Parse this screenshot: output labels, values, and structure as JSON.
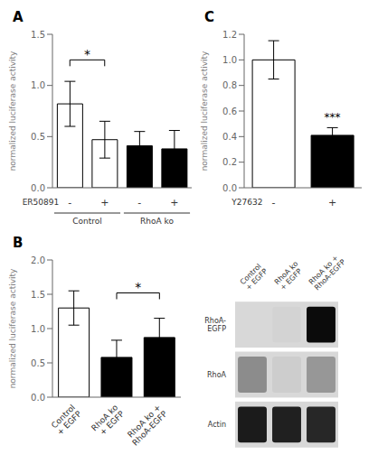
{
  "chart_data": [
    {
      "type": "bar",
      "title": "A",
      "categories": [
        "-",
        "+",
        "-",
        "+"
      ],
      "values": [
        0.82,
        0.47,
        0.41,
        0.38
      ],
      "errors": [
        0.22,
        0.18,
        0.14,
        0.18
      ],
      "colors": [
        "white",
        "white",
        "black",
        "black"
      ],
      "ylabel": "normalized luciferase activity",
      "xlabel": "ER50891",
      "ylim": [
        0,
        1.5
      ],
      "yticks": [
        {
          "value": 0,
          "label": "0.0"
        },
        0.5,
        {
          "value": 1,
          "label": "1.0"
        },
        1.5
      ],
      "groups": [
        {
          "label": "Control",
          "categories": [
            0,
            1
          ]
        },
        {
          "label": "RhoA ko",
          "categories": [
            2,
            3
          ]
        }
      ],
      "annotations": [
        {
          "text": "*",
          "x": [
            0,
            1
          ],
          "y": 1.25
        }
      ]
    },
    {
      "type": "bar",
      "title": "C",
      "categories": [
        "-",
        "+"
      ],
      "values": [
        1.0,
        0.41
      ],
      "errors": [
        0.15,
        0.06
      ],
      "colors": [
        "white",
        "black"
      ],
      "ylabel": "normalized luciferase activity",
      "xlabel": "Y27632",
      "ylim": [
        0,
        1.2
      ],
      "yticks": [
        {
          "value": 0,
          "label": "0.0"
        },
        0.2,
        0.4,
        0.6,
        0.8,
        {
          "value": 1,
          "label": "1.0"
        },
        1.2
      ],
      "annotations": [
        {
          "text": "***",
          "x": [
            1
          ],
          "y": 0.52
        }
      ]
    },
    {
      "type": "bar",
      "title": "B",
      "categories": [
        "Control\n+ EGFP",
        "RhoA ko\n+ EGFP",
        "RhoA ko +\nRhoA-EGFP"
      ],
      "values": [
        1.3,
        0.58,
        0.87
      ],
      "errors": [
        0.25,
        0.25,
        0.28
      ],
      "colors": [
        "white",
        "black",
        "black"
      ],
      "ylabel": "normalized luciferase activity",
      "ylim": [
        0,
        2.0
      ],
      "yticks": [
        {
          "value": 0,
          "label": "0.0"
        },
        0.5,
        {
          "value": 1,
          "label": "1.0"
        },
        1.5,
        {
          "value": 2,
          "label": "2.0"
        }
      ],
      "annotations": [
        {
          "text": "*",
          "x": [
            1,
            2
          ],
          "y": 1.52
        }
      ]
    },
    {
      "type": "heatmap",
      "x": [
        "Control\n+ EGFP",
        "RhoA ko\n+ EGFP",
        "RhoA ko +\nRhoA-EGFP"
      ],
      "y": [
        "RhoA-\nEGFP",
        "RhoA",
        "Actin"
      ],
      "cells": [
        [
          0.0,
          0.02,
          0.95
        ],
        [
          0.35,
          0.05,
          0.3
        ],
        [
          0.88,
          0.85,
          0.82
        ]
      ]
    }
  ]
}
